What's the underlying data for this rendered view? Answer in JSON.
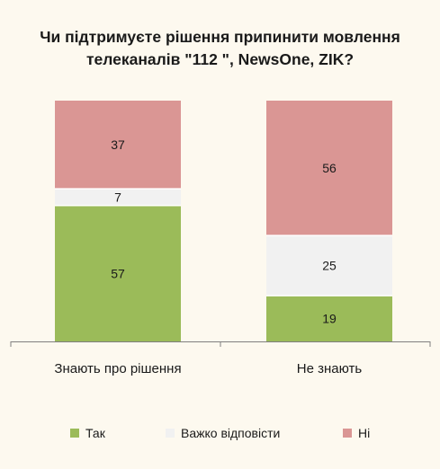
{
  "chart_data": {
    "type": "bar",
    "stacked": true,
    "percent_stacked": true,
    "title": "Чи підтримуєте рішення припинити мовлення телеканалів \"112 \", NewsOne, ZIK?",
    "categories": [
      "Знають про рішення",
      "Не знають"
    ],
    "series": [
      {
        "name": "Так",
        "values": [
          57,
          19
        ],
        "color": "#9bbb59"
      },
      {
        "name": "Важко відповісти",
        "values": [
          7,
          25
        ],
        "color": "#f1f1f1"
      },
      {
        "name": "Ні",
        "values": [
          37,
          56
        ],
        "color": "#da9694"
      }
    ],
    "ylim": [
      0,
      100
    ],
    "grid": false,
    "y_axis_visible": false,
    "legend_position": "bottom"
  }
}
